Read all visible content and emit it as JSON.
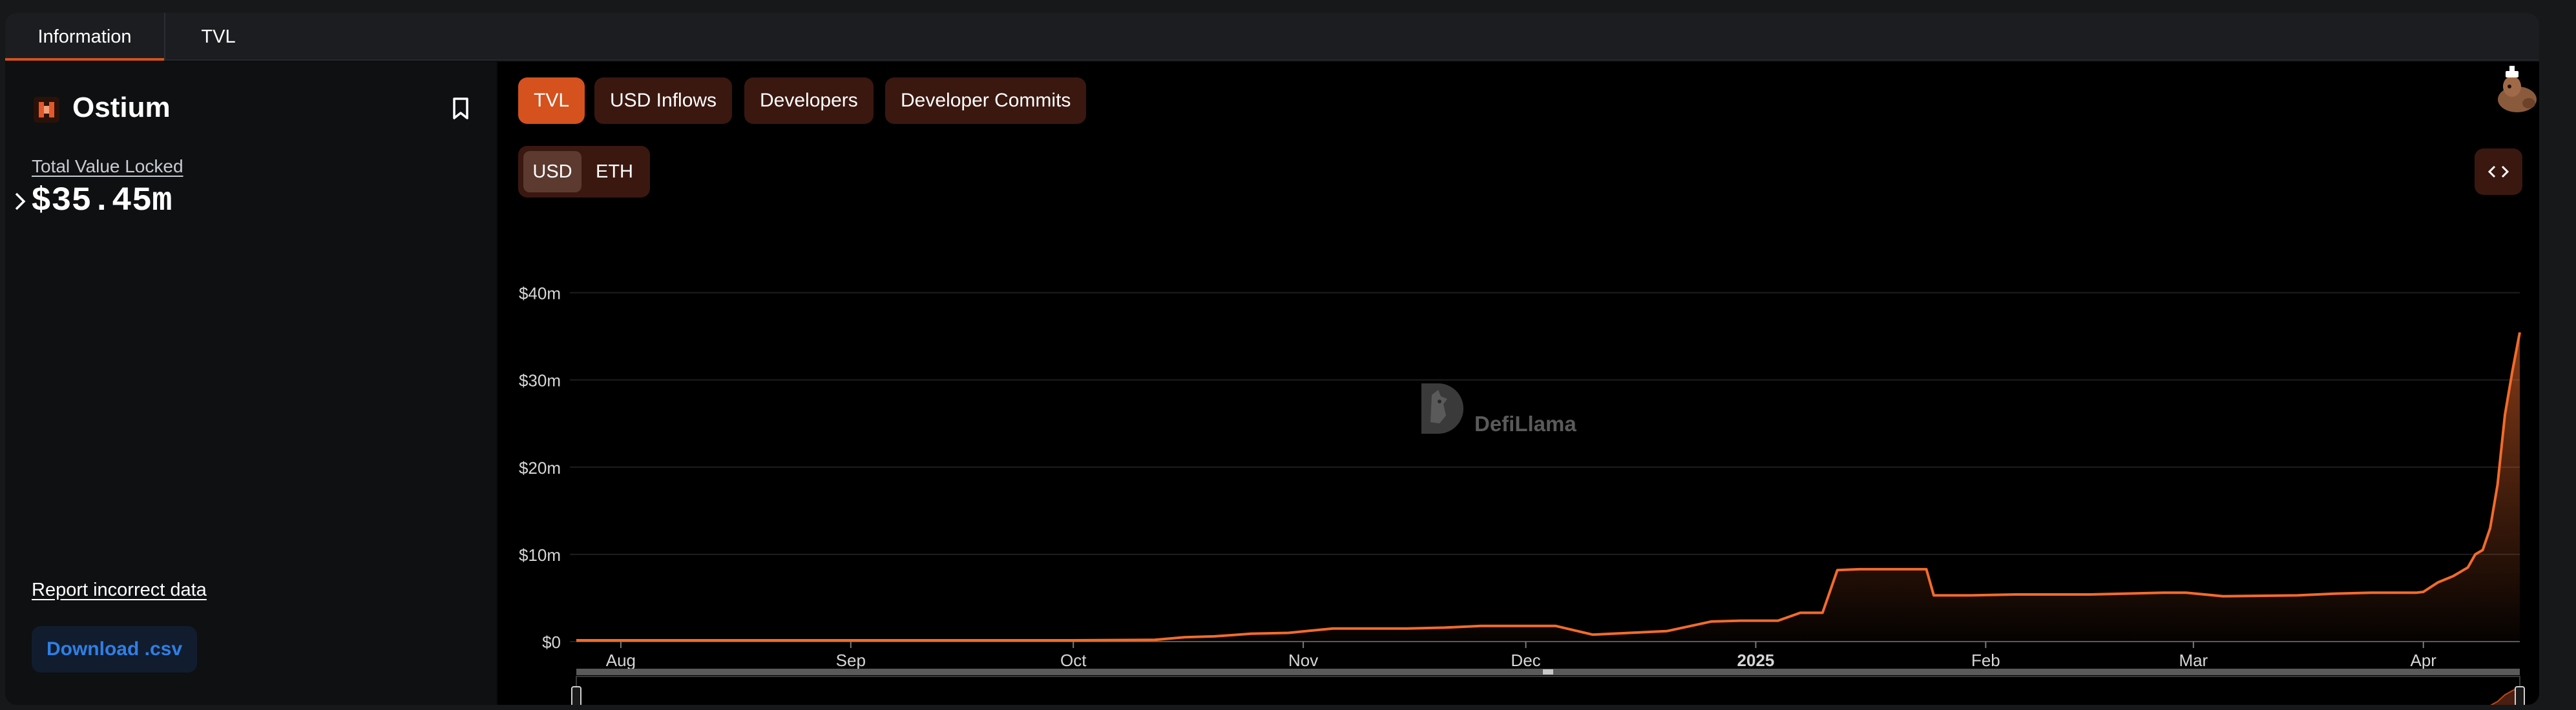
{
  "tabs": [
    {
      "label": "Information",
      "active": true
    },
    {
      "label": "TVL",
      "active": false
    }
  ],
  "protocol": {
    "name": "Ostium",
    "tvl_label": "Total Value Locked",
    "tvl_value": "$35.45m"
  },
  "sidebar": {
    "report_label": "Report incorrect data",
    "download_label": "Download .csv"
  },
  "metrics": [
    {
      "label": "TVL",
      "active": true
    },
    {
      "label": "USD Inflows",
      "active": false
    },
    {
      "label": "Developers",
      "active": false
    },
    {
      "label": "Developer Commits",
      "active": false
    }
  ],
  "currency": [
    {
      "label": "USD",
      "active": true
    },
    {
      "label": "ETH",
      "active": false
    }
  ],
  "watermark": "DefiLlama",
  "colors": {
    "accent": "#d5511d",
    "line": "#f26b2b",
    "button_bg": "#3a1810",
    "link_blue": "#2f7fe6"
  },
  "icons": {
    "logo": "ostium-logo-icon",
    "bookmark": "bookmark-icon",
    "caret": "chevron-right-icon",
    "embed": "code-embed-icon",
    "avatar": "llama-avatar-icon"
  },
  "chart_data": {
    "type": "area",
    "title": "",
    "xlabel": "",
    "ylabel": "",
    "ylim": [
      0,
      45
    ],
    "y_unit": "USD millions",
    "yticks": [
      "$0",
      "$10m",
      "$20m",
      "$30m",
      "$40m"
    ],
    "xticks": [
      "Aug",
      "Sep",
      "Oct",
      "Nov",
      "Dec",
      "2025",
      "Feb",
      "Mar",
      "Apr"
    ],
    "xlim": [
      "2024-07-26",
      "2025-04-14"
    ],
    "grid": true,
    "legend": "none",
    "series": [
      {
        "x": [
          "2024-07-26",
          "2024-08-15",
          "2024-09-15",
          "2024-10-01",
          "2024-10-12",
          "2024-10-16",
          "2024-10-20",
          "2024-10-25",
          "2024-10-30",
          "2024-11-05",
          "2024-11-15",
          "2024-11-20",
          "2024-11-25",
          "2024-11-30",
          "2024-12-05",
          "2024-12-10",
          "2024-12-15",
          "2024-12-20",
          "2024-12-26",
          "2024-12-30",
          "2025-01-01",
          "2025-01-04",
          "2025-01-07",
          "2025-01-10",
          "2025-01-12",
          "2025-01-15",
          "2025-01-20",
          "2025-01-24",
          "2025-01-25",
          "2025-01-30",
          "2025-02-05",
          "2025-02-15",
          "2025-02-25",
          "2025-02-28",
          "2025-03-05",
          "2025-03-15",
          "2025-03-20",
          "2025-03-25",
          "2025-03-31",
          "2025-04-01",
          "2025-04-03",
          "2025-04-05",
          "2025-04-07",
          "2025-04-08",
          "2025-04-09",
          "2025-04-10",
          "2025-04-11",
          "2025-04-12",
          "2025-04-13",
          "2025-04-14"
        ],
        "values": [
          0.15,
          0.15,
          0.15,
          0.15,
          0.2,
          0.5,
          0.6,
          0.9,
          1.0,
          1.5,
          1.5,
          1.6,
          1.8,
          1.8,
          1.8,
          0.8,
          1.0,
          1.2,
          2.3,
          2.4,
          2.4,
          2.4,
          3.3,
          3.3,
          8.2,
          8.3,
          8.3,
          8.3,
          5.3,
          5.3,
          5.4,
          5.4,
          5.6,
          5.6,
          5.2,
          5.3,
          5.5,
          5.6,
          5.6,
          5.7,
          6.8,
          7.5,
          8.5,
          10.0,
          10.5,
          13.0,
          18.0,
          26.0,
          31.0,
          35.45
        ]
      }
    ]
  }
}
